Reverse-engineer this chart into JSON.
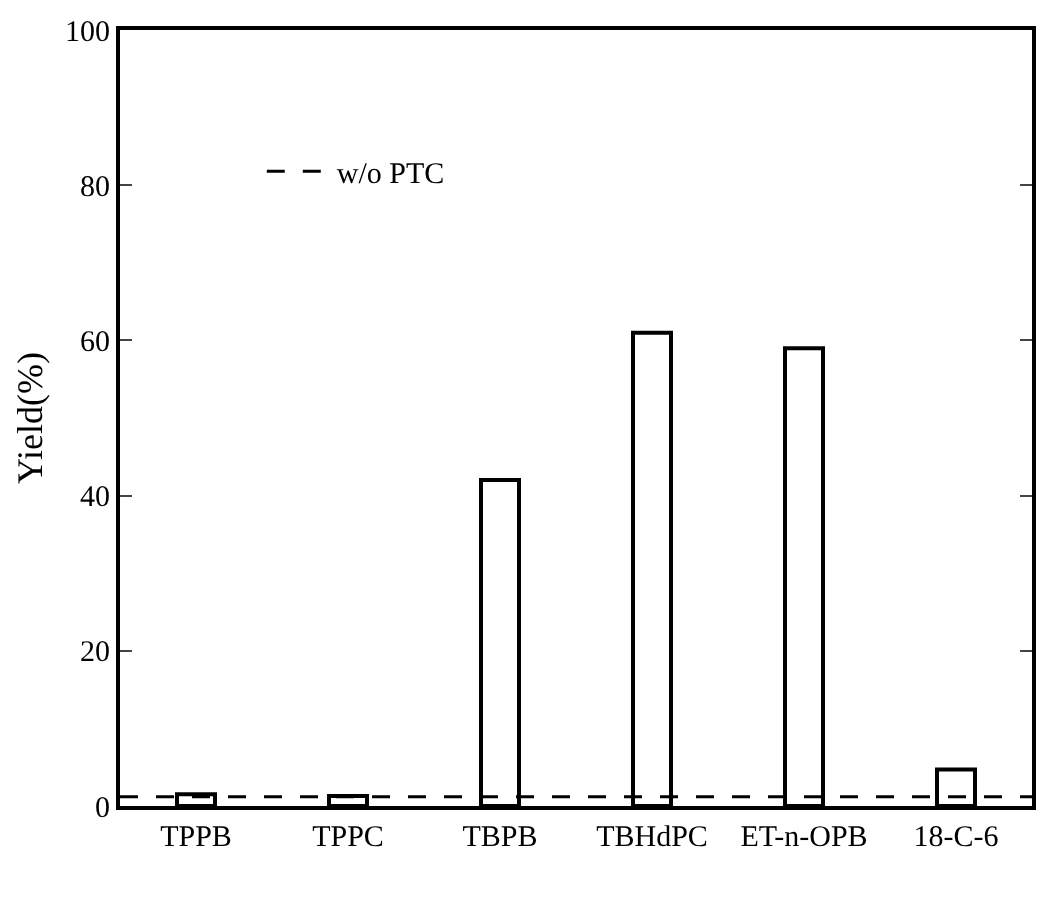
{
  "chart_data": {
    "type": "bar",
    "ylabel": "Yield(%)",
    "categories": [
      "TPPB",
      "TPPC",
      "TBPB",
      "TBHdPC",
      "ET-n-OPB",
      "18-C-6"
    ],
    "values": [
      1.5,
      1.3,
      42,
      61,
      59,
      4.7
    ],
    "color": "#ffffff",
    "ylim": [
      0,
      100
    ],
    "yticks": [
      0,
      20,
      40,
      60,
      80,
      100
    ],
    "legend": "top left",
    "ref_lines": [
      {
        "axis": "y",
        "value": 1.2,
        "label": "w/o PTC",
        "color": "#000000",
        "line_style": "dashed"
      }
    ]
  }
}
